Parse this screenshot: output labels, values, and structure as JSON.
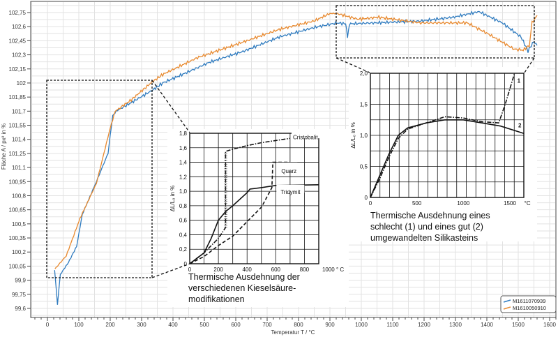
{
  "chart_data": [
    {
      "type": "line",
      "title": "",
      "xlabel": "Temperatur T / °C",
      "ylabel": "Fläche A / px² in %",
      "xlim": [
        -50,
        1650
      ],
      "ylim": [
        99.55,
        102.85
      ],
      "xticks": [
        "0",
        "100",
        "200",
        "300",
        "400",
        "500",
        "600",
        "700",
        "800",
        "900",
        "1000",
        "1100",
        "1200",
        "1300",
        "1400",
        "1500",
        "1600"
      ],
      "yticks": [
        "99,6",
        "99,75",
        "99,9",
        "100,05",
        "100,2",
        "100,35",
        "100,5",
        "100,65",
        "100,8",
        "100,95",
        "101,1",
        "101,25",
        "101,4",
        "101,55",
        "101,7",
        "101,85",
        "102",
        "102,15",
        "102,3",
        "102,45",
        "102,6",
        "102,75"
      ],
      "grid": true,
      "legend_position": "bottom-right",
      "series": [
        {
          "name": "M1611070939",
          "color": "#2f7bbf",
          "x": [
            23,
            32,
            41,
            67,
            93,
            111,
            156,
            193,
            208,
            219,
            282,
            333,
            367,
            416,
            516,
            627,
            738,
            849,
            922,
            950,
            956,
            962,
            1042,
            1189,
            1293,
            1375,
            1449,
            1509,
            1531,
            1549,
            1560
          ],
          "y": [
            100.01,
            99.64,
            99.96,
            100.09,
            100.26,
            100.6,
            100.95,
            101.25,
            101.65,
            101.7,
            101.82,
            101.92,
            102.0,
            102.07,
            102.22,
            102.34,
            102.49,
            102.59,
            102.64,
            102.63,
            102.49,
            102.63,
            102.64,
            102.66,
            102.7,
            102.76,
            102.64,
            102.49,
            102.34,
            102.44,
            102.4
          ]
        },
        {
          "name": "M1610050910",
          "color": "#e8892e",
          "x": [
            24,
            60,
            104,
            156,
            200,
            216,
            267,
            333,
            367,
            478,
            627,
            738,
            849,
            900,
            922,
            989,
            1056,
            1189,
            1338,
            1411,
            1487,
            1516,
            1535,
            1544,
            1560
          ],
          "y": [
            100.02,
            100.16,
            100.56,
            100.93,
            101.52,
            101.7,
            101.82,
            102.01,
            102.09,
            102.27,
            102.44,
            102.57,
            102.66,
            102.74,
            102.74,
            102.68,
            102.7,
            102.64,
            102.64,
            102.51,
            102.36,
            102.35,
            102.4,
            102.64,
            102.72
          ]
        }
      ]
    },
    {
      "type": "line",
      "title": "Thermische Ausdehnung der verschiedenen Kieselsäure-modifikationen",
      "caption_lines": [
        "Thermische Ausdehnung der",
        "verschiedenen Kieselsäure-",
        "modifikationen"
      ],
      "xlabel": "°C",
      "ylabel": "ΔL/L₀ in %",
      "xlim": [
        0,
        900
      ],
      "ylim": [
        0,
        1.8
      ],
      "xticks": [
        "0",
        "200",
        "400",
        "600",
        "800",
        "1000 ° C"
      ],
      "yticks": [
        "0",
        "0,2",
        "0,4",
        "0,6",
        "0,8",
        "1,0",
        "1,2",
        "1,4",
        "1,6",
        "1,8"
      ],
      "series": [
        {
          "name": "Cristobalit",
          "style": "dash-dot",
          "x": [
            0,
            100,
            200,
            250,
            250,
            300,
            400,
            500,
            600,
            700
          ],
          "y": [
            0,
            0.15,
            0.35,
            0.5,
            1.55,
            1.58,
            1.63,
            1.67,
            1.7,
            1.73
          ]
        },
        {
          "name": "Quarz",
          "style": "dashed",
          "x": [
            0,
            100,
            200,
            300,
            400,
            500,
            560,
            573,
            580,
            700
          ],
          "y": [
            0,
            0.1,
            0.25,
            0.38,
            0.58,
            0.78,
            1.0,
            1.05,
            1.4,
            1.4
          ]
        },
        {
          "name": "Tridymit",
          "style": "solid",
          "x": [
            0,
            100,
            150,
            200,
            250,
            300,
            400,
            420,
            500,
            600,
            900
          ],
          "y": [
            0,
            0.15,
            0.35,
            0.6,
            0.72,
            0.8,
            0.98,
            1.03,
            1.05,
            1.08,
            1.09
          ]
        }
      ]
    },
    {
      "type": "line",
      "title": "Thermische Ausdehnung eines schlecht (1) und eines gut (2) umgewandelten Silikasteins",
      "caption_lines": [
        "Thermische Ausdehnung eines",
        "schlecht (1) und eines gut (2)",
        "umgewandelten Silikasteins"
      ],
      "xlabel": "°C",
      "ylabel": "ΔL/L₀ in %",
      "xlim": [
        0,
        1650
      ],
      "ylim": [
        0,
        2.0
      ],
      "xticks": [
        "0",
        "500",
        "1000",
        "1500"
      ],
      "yticks": [
        "0",
        "0,5",
        "1,0",
        "1,5",
        "2,0"
      ],
      "series": [
        {
          "name": "1",
          "style": "dash-dot",
          "x": [
            0,
            100,
            200,
            300,
            400,
            600,
            700,
            800,
            1000,
            1200,
            1380,
            1450,
            1500,
            1550
          ],
          "y": [
            0,
            0.3,
            0.65,
            0.95,
            1.1,
            1.2,
            1.25,
            1.3,
            1.28,
            1.22,
            1.2,
            1.5,
            1.75,
            2.0
          ]
        },
        {
          "name": "2",
          "style": "solid",
          "x": [
            0,
            100,
            200,
            300,
            400,
            600,
            800,
            1000,
            1200,
            1400,
            1650
          ],
          "y": [
            0,
            0.35,
            0.7,
            1.0,
            1.12,
            1.2,
            1.25,
            1.25,
            1.2,
            1.15,
            1.03
          ]
        }
      ]
    }
  ]
}
